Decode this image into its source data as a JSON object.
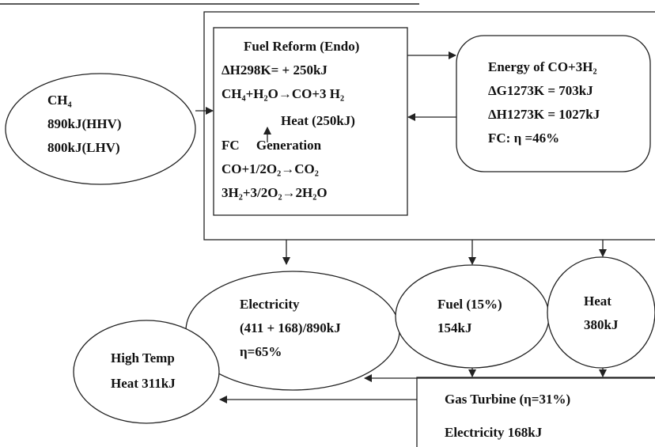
{
  "source": {
    "lines": [
      "CH₄",
      "890kJ(HHV)",
      "800kJ(LHV)"
    ]
  },
  "reformer": {
    "lines": [
      "Fuel Reform (Endo)",
      "ΔH298K= + 250kJ",
      "CH₄+H₂O→CO+3 H₂",
      "Heat (250kJ)",
      "FC     Generation",
      "CO+1/2O₂→CO₂",
      "3H₂+3/2O₂→2H₂O"
    ]
  },
  "energy": {
    "lines": [
      "Energy of CO+3H₂",
      "ΔG1273K = 703kJ",
      "ΔH1273K = 1027kJ",
      "FC: η =46%"
    ]
  },
  "electricity": {
    "lines": [
      "Electricity",
      "(411 + 168)/890kJ",
      "η=65%"
    ]
  },
  "fuel": {
    "lines": [
      "Fuel (15%)",
      "154kJ"
    ]
  },
  "heat": {
    "lines": [
      "Heat",
      "380kJ"
    ]
  },
  "high_temp": {
    "lines": [
      "High Temp",
      "Heat 311kJ"
    ]
  },
  "gas_turbine": {
    "lines": [
      "Gas Turbine (η=31%)",
      "Electricity 168kJ"
    ]
  }
}
